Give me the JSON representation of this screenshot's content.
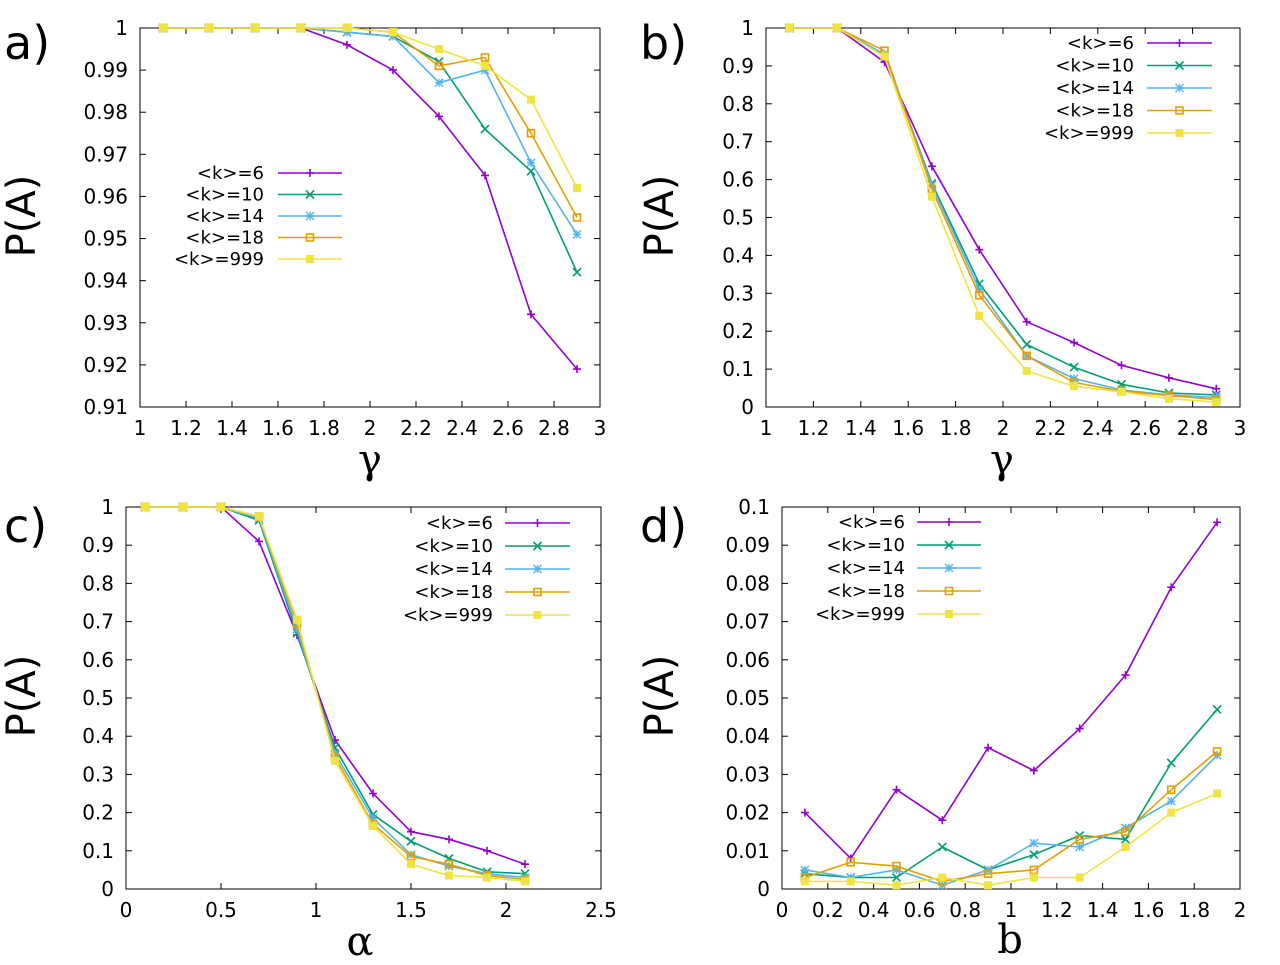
{
  "legend_labels": [
    "<k>=6",
    "<k>=10",
    "<k>=14",
    "<k>=18",
    "<k>=999"
  ],
  "series_colors": [
    "#9400d3",
    "#009e73",
    "#56b4e9",
    "#e69f00",
    "#f0e442"
  ],
  "chart_data": [
    {
      "type": "line",
      "panel_label": "a)",
      "ylabel": "P(A)",
      "xlabel": "γ",
      "xlim": [
        1,
        3
      ],
      "ylim": [
        0.91,
        1
      ],
      "xticks": [
        "1",
        "1.2",
        "1.4",
        "1.6",
        "1.8",
        "2",
        "2.2",
        "2.4",
        "2.6",
        "2.8",
        "3"
      ],
      "yticks": [
        "0.91",
        "0.92",
        "0.93",
        "0.94",
        "0.95",
        "0.96",
        "0.97",
        "0.98",
        "0.99",
        "1"
      ],
      "x": [
        1.1,
        1.3,
        1.5,
        1.7,
        1.9,
        2.1,
        2.3,
        2.5,
        2.7,
        2.9
      ],
      "legend_position": "left",
      "series": [
        {
          "name": "<k>=6",
          "marker": "plus",
          "values": [
            1.0,
            1.0,
            1.0,
            1.0,
            0.996,
            0.99,
            0.979,
            0.965,
            0.932,
            0.919
          ]
        },
        {
          "name": "<k>=10",
          "marker": "cross",
          "values": [
            1.0,
            1.0,
            1.0,
            1.0,
            0.999,
            0.998,
            0.992,
            0.976,
            0.966,
            0.942
          ]
        },
        {
          "name": "<k>=14",
          "marker": "star",
          "values": [
            1.0,
            1.0,
            1.0,
            1.0,
            0.999,
            0.998,
            0.987,
            0.99,
            0.968,
            0.951
          ]
        },
        {
          "name": "<k>=18",
          "marker": "square-open",
          "values": [
            1.0,
            1.0,
            1.0,
            1.0,
            1.0,
            0.999,
            0.991,
            0.993,
            0.975,
            0.955
          ]
        },
        {
          "name": "<k>=999",
          "marker": "square-filled",
          "values": [
            1.0,
            1.0,
            1.0,
            1.0,
            1.0,
            0.999,
            0.995,
            0.991,
            0.983,
            0.962
          ]
        }
      ]
    },
    {
      "type": "line",
      "panel_label": "b)",
      "ylabel": "P(A)",
      "xlabel": "γ",
      "xlim": [
        1,
        3
      ],
      "ylim": [
        0,
        1
      ],
      "xticks": [
        "1",
        "1.2",
        "1.4",
        "1.6",
        "1.8",
        "2",
        "2.2",
        "2.4",
        "2.6",
        "2.8",
        "3"
      ],
      "yticks": [
        "0",
        "0.1",
        "0.2",
        "0.3",
        "0.4",
        "0.5",
        "0.6",
        "0.7",
        "0.8",
        "0.9",
        "1"
      ],
      "x": [
        1.1,
        1.3,
        1.5,
        1.7,
        1.9,
        2.1,
        2.3,
        2.5,
        2.7,
        2.9
      ],
      "legend_position": "top-right",
      "series": [
        {
          "name": "<k>=6",
          "marker": "plus",
          "values": [
            1.0,
            1.0,
            0.91,
            0.635,
            0.415,
            0.225,
            0.17,
            0.11,
            0.077,
            0.048
          ]
        },
        {
          "name": "<k>=10",
          "marker": "cross",
          "values": [
            1.0,
            1.0,
            0.93,
            0.59,
            0.325,
            0.165,
            0.105,
            0.06,
            0.037,
            0.032
          ]
        },
        {
          "name": "<k>=14",
          "marker": "star",
          "values": [
            1.0,
            1.0,
            0.93,
            0.585,
            0.31,
            0.135,
            0.075,
            0.045,
            0.032,
            0.025
          ]
        },
        {
          "name": "<k>=18",
          "marker": "square-open",
          "values": [
            1.0,
            1.0,
            0.94,
            0.575,
            0.295,
            0.135,
            0.065,
            0.042,
            0.03,
            0.02
          ]
        },
        {
          "name": "<k>=999",
          "marker": "square-filled",
          "values": [
            1.0,
            1.0,
            0.925,
            0.555,
            0.24,
            0.095,
            0.055,
            0.04,
            0.022,
            0.013
          ]
        }
      ]
    },
    {
      "type": "line",
      "panel_label": "c)",
      "ylabel": "P(A)",
      "xlabel": "α",
      "xlim": [
        0,
        2.5
      ],
      "ylim": [
        0,
        1
      ],
      "xticks": [
        "0",
        "0.5",
        "1",
        "1.5",
        "2",
        "2.5"
      ],
      "yticks": [
        "0",
        "0.1",
        "0.2",
        "0.3",
        "0.4",
        "0.5",
        "0.6",
        "0.7",
        "0.8",
        "0.9",
        "1"
      ],
      "x": [
        0.1,
        0.3,
        0.5,
        0.7,
        0.9,
        1.1,
        1.3,
        1.5,
        1.7,
        1.9,
        2.1
      ],
      "legend_position": "top-right",
      "series": [
        {
          "name": "<k>=6",
          "marker": "plus",
          "values": [
            1.0,
            1.0,
            1.0,
            0.91,
            0.665,
            0.39,
            0.25,
            0.15,
            0.13,
            0.1,
            0.065
          ]
        },
        {
          "name": "<k>=10",
          "marker": "cross",
          "values": [
            1.0,
            1.0,
            1.0,
            0.965,
            0.67,
            0.37,
            0.195,
            0.125,
            0.08,
            0.045,
            0.04
          ]
        },
        {
          "name": "<k>=14",
          "marker": "star",
          "values": [
            1.0,
            1.0,
            1.0,
            0.97,
            0.68,
            0.355,
            0.185,
            0.09,
            0.06,
            0.04,
            0.03
          ]
        },
        {
          "name": "<k>=18",
          "marker": "square-open",
          "values": [
            1.0,
            1.0,
            1.0,
            0.975,
            0.695,
            0.345,
            0.17,
            0.085,
            0.065,
            0.035,
            0.025
          ]
        },
        {
          "name": "<k>=999",
          "marker": "square-filled",
          "values": [
            1.0,
            1.0,
            1.0,
            0.975,
            0.705,
            0.335,
            0.165,
            0.065,
            0.035,
            0.03,
            0.02
          ]
        }
      ]
    },
    {
      "type": "line",
      "panel_label": "d)",
      "ylabel": "P(A)",
      "xlabel": "b",
      "xlim": [
        0,
        2
      ],
      "ylim": [
        0,
        0.1
      ],
      "xticks": [
        "0",
        "0.2",
        "0.4",
        "0.6",
        "0.8",
        "1",
        "1.2",
        "1.4",
        "1.6",
        "1.8",
        "2"
      ],
      "yticks": [
        "0",
        "0.01",
        "0.02",
        "0.03",
        "0.04",
        "0.05",
        "0.06",
        "0.07",
        "0.08",
        "0.09",
        "0.1"
      ],
      "x": [
        0.1,
        0.3,
        0.5,
        0.7,
        0.9,
        1.1,
        1.3,
        1.5,
        1.7,
        1.9
      ],
      "legend_position": "top-left",
      "series": [
        {
          "name": "<k>=6",
          "marker": "plus",
          "values": [
            0.02,
            0.008,
            0.026,
            0.018,
            0.037,
            0.031,
            0.042,
            0.056,
            0.079,
            0.096
          ]
        },
        {
          "name": "<k>=10",
          "marker": "cross",
          "values": [
            0.004,
            0.003,
            0.003,
            0.011,
            0.005,
            0.009,
            0.014,
            0.013,
            0.033,
            0.047
          ]
        },
        {
          "name": "<k>=14",
          "marker": "star",
          "values": [
            0.005,
            0.003,
            0.005,
            0.001,
            0.005,
            0.012,
            0.011,
            0.016,
            0.023,
            0.035
          ]
        },
        {
          "name": "<k>=18",
          "marker": "square-open",
          "values": [
            0.003,
            0.007,
            0.006,
            0.002,
            0.004,
            0.005,
            0.013,
            0.015,
            0.026,
            0.036
          ]
        },
        {
          "name": "<k>=999",
          "marker": "square-filled",
          "values": [
            0.002,
            0.002,
            0.001,
            0.003,
            0.001,
            0.003,
            0.003,
            0.011,
            0.02,
            0.025
          ]
        }
      ]
    }
  ]
}
